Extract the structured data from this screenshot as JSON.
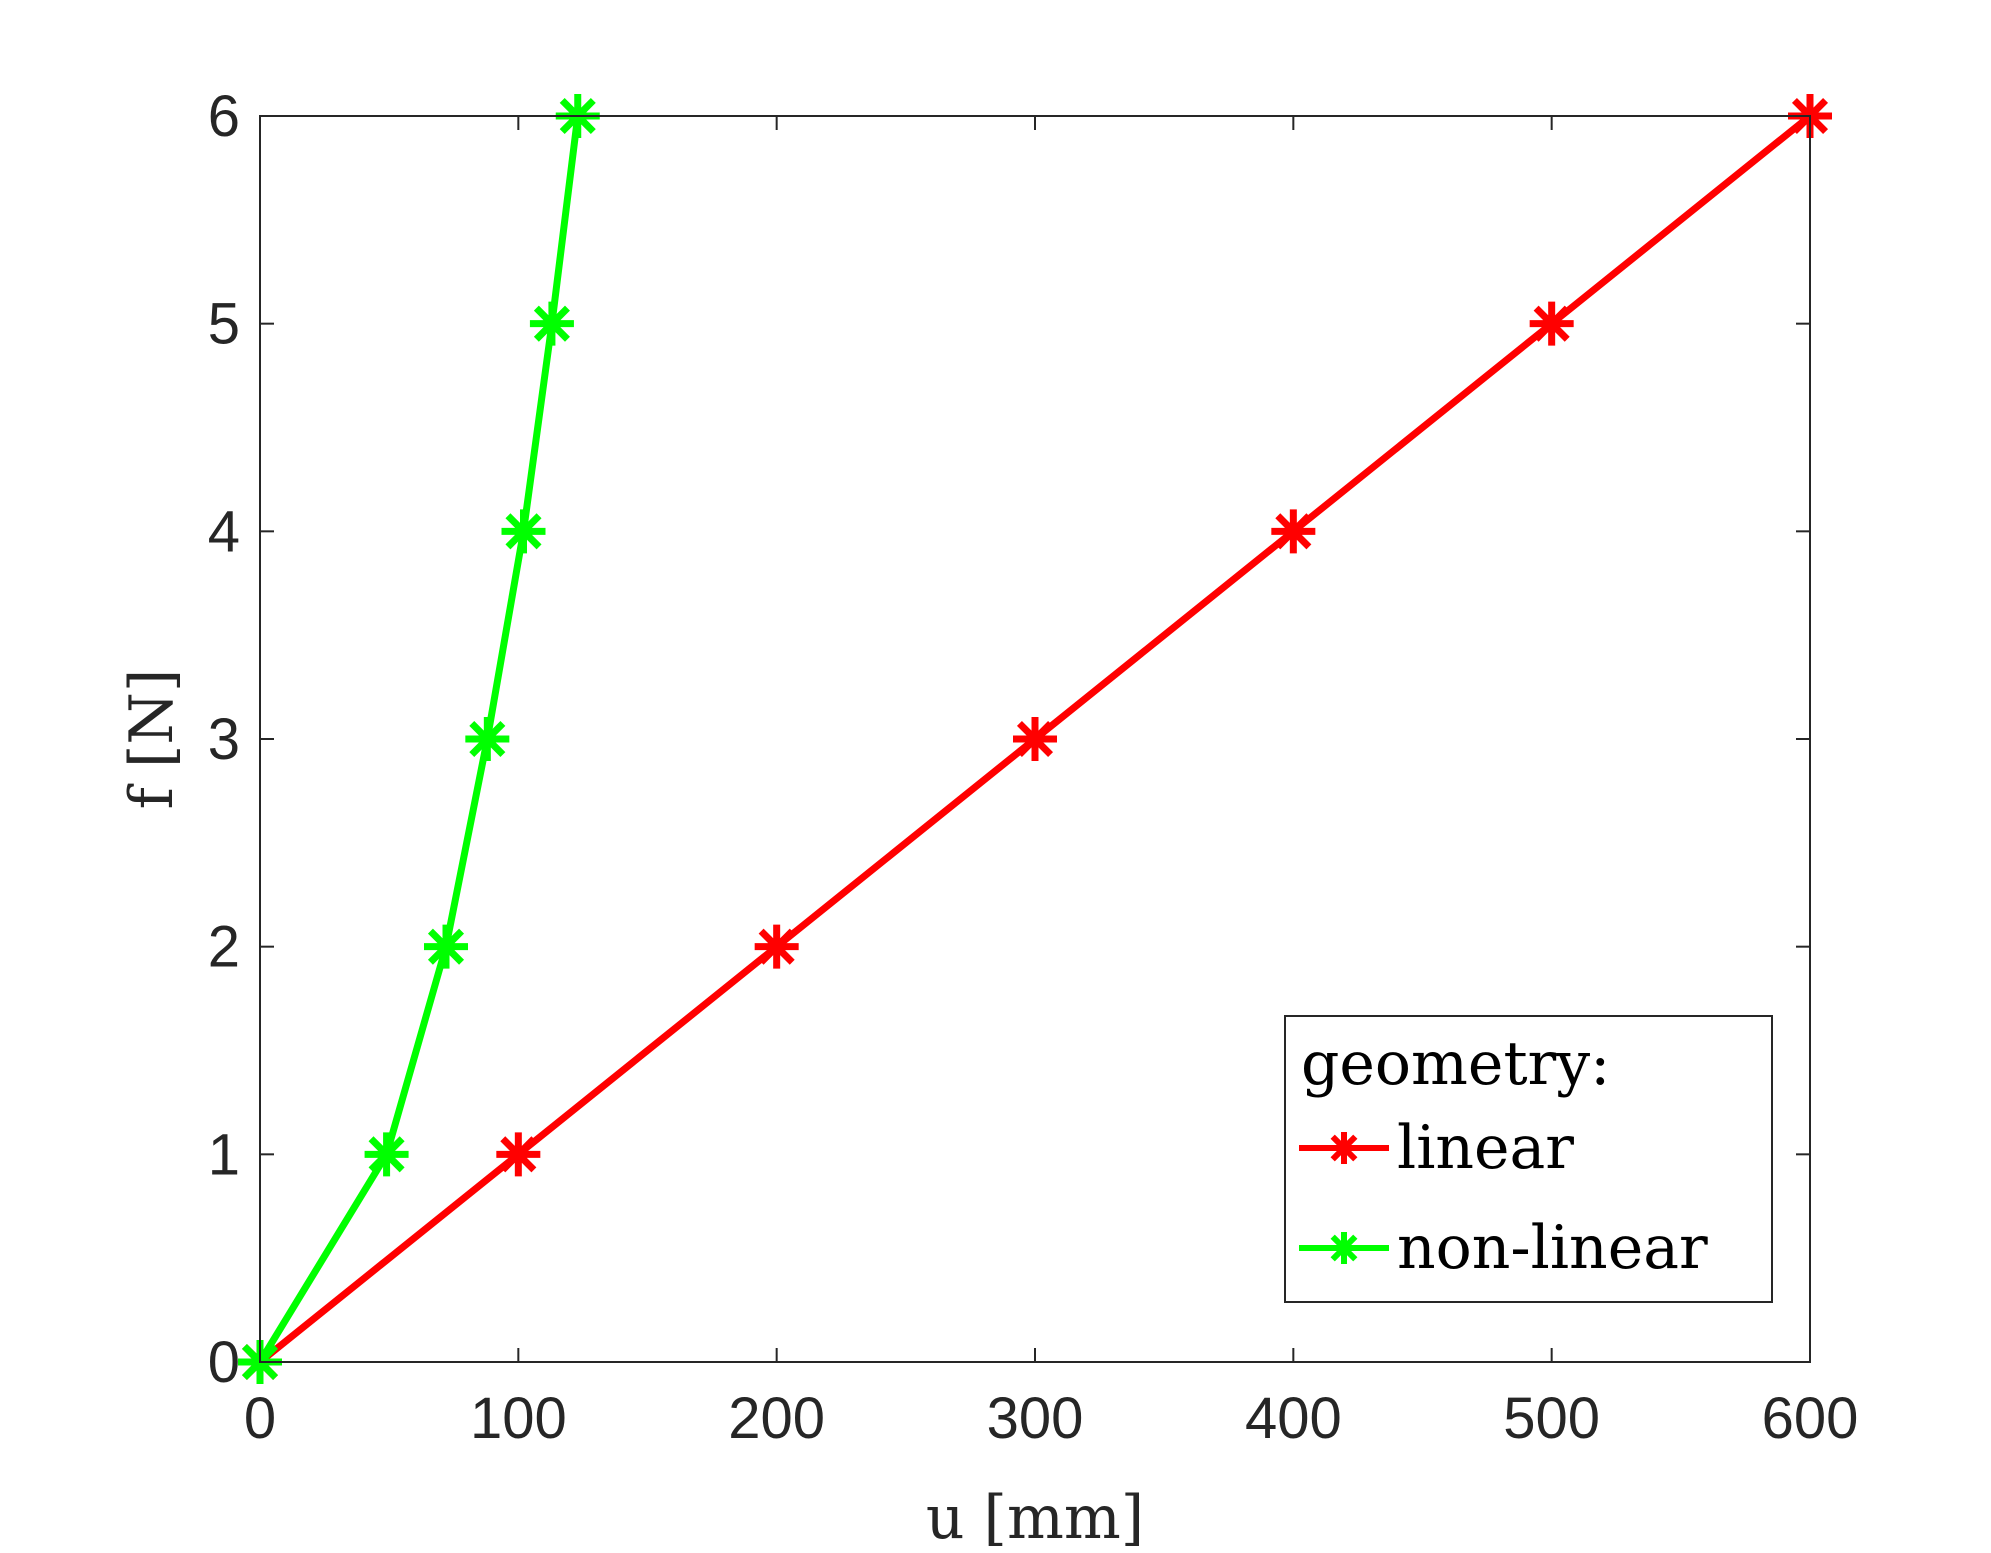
{
  "chart_data": {
    "type": "line",
    "xlabel": "u [mm]",
    "ylabel": "f [N]",
    "xlim": [
      0,
      600
    ],
    "ylim": [
      0,
      6
    ],
    "xticks": [
      0,
      100,
      200,
      300,
      400,
      500,
      600
    ],
    "yticks": [
      0,
      1,
      2,
      3,
      4,
      5,
      6
    ],
    "grid": false,
    "marker": "asterisk",
    "legend": {
      "title": "geometry:",
      "placement": "bottom-right"
    },
    "series": [
      {
        "name": "linear",
        "color": "#ff0000",
        "x": [
          0,
          100,
          200,
          300,
          400,
          500,
          600
        ],
        "y": [
          0,
          1,
          2,
          3,
          4,
          5,
          6
        ]
      },
      {
        "name": "non-linear",
        "color": "#00ff00",
        "x": [
          0,
          49,
          72,
          88,
          102,
          113,
          123
        ],
        "y": [
          0,
          1,
          2,
          3,
          4,
          5,
          6
        ]
      }
    ]
  }
}
